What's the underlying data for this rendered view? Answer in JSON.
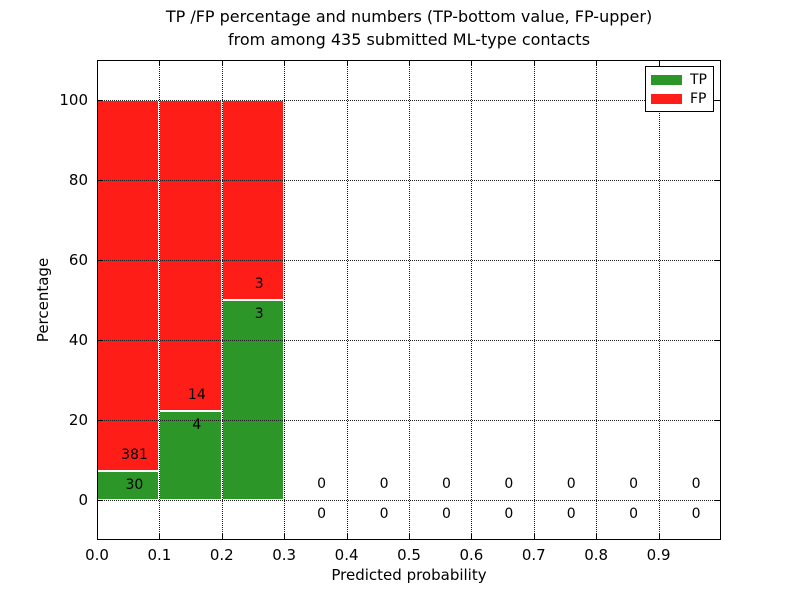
{
  "figure": {
    "title_line1": "TP /FP percentage and numbers (TP-bottom value, FP-upper)",
    "title_line2": "from among 435 submitted ML-type contacts"
  },
  "chart_data": {
    "type": "bar",
    "stacked": true,
    "title": "TP /FP percentage and numbers (TP-bottom value, FP-upper)\nfrom among 435 submitted ML-type contacts",
    "xlabel": "Predicted probability",
    "ylabel": "Percentage",
    "xlim": [
      0.0,
      1.0
    ],
    "ylim": [
      -10,
      110
    ],
    "x_tick_labels": [
      "0.0",
      "0.1",
      "0.2",
      "0.3",
      "0.4",
      "0.5",
      "0.6",
      "0.7",
      "0.8",
      "0.9"
    ],
    "y_tick_values": [
      0,
      20,
      40,
      60,
      80,
      100
    ],
    "grid": "dotted-both-axes-above-bars",
    "total_submitted_contacts": 435,
    "legend": {
      "position": "upper right",
      "items": [
        {
          "label": "TP",
          "color": "#2c9628"
        },
        {
          "label": "FP",
          "color": "#ff1d17"
        }
      ]
    },
    "bins": [
      {
        "x0": 0.0,
        "x1": 0.1,
        "tp_count": 30,
        "fp_count": 381,
        "tp_pct": 7.3,
        "fp_pct": 92.7
      },
      {
        "x0": 0.1,
        "x1": 0.2,
        "tp_count": 4,
        "fp_count": 14,
        "tp_pct": 22.2,
        "fp_pct": 77.8
      },
      {
        "x0": 0.2,
        "x1": 0.3,
        "tp_count": 3,
        "fp_count": 3,
        "tp_pct": 50.0,
        "fp_pct": 50.0
      },
      {
        "x0": 0.3,
        "x1": 0.4,
        "tp_count": 0,
        "fp_count": 0,
        "tp_pct": 0,
        "fp_pct": 0
      },
      {
        "x0": 0.4,
        "x1": 0.5,
        "tp_count": 0,
        "fp_count": 0,
        "tp_pct": 0,
        "fp_pct": 0
      },
      {
        "x0": 0.5,
        "x1": 0.6,
        "tp_count": 0,
        "fp_count": 0,
        "tp_pct": 0,
        "fp_pct": 0
      },
      {
        "x0": 0.6,
        "x1": 0.7,
        "tp_count": 0,
        "fp_count": 0,
        "tp_pct": 0,
        "fp_pct": 0
      },
      {
        "x0": 0.7,
        "x1": 0.8,
        "tp_count": 0,
        "fp_count": 0,
        "tp_pct": 0,
        "fp_pct": 0
      },
      {
        "x0": 0.8,
        "x1": 0.9,
        "tp_count": 0,
        "fp_count": 0,
        "tp_pct": 0,
        "fp_pct": 0
      },
      {
        "x0": 0.9,
        "x1": 1.0,
        "tp_count": 0,
        "fp_count": 0,
        "tp_pct": 0,
        "fp_pct": 0
      }
    ]
  }
}
